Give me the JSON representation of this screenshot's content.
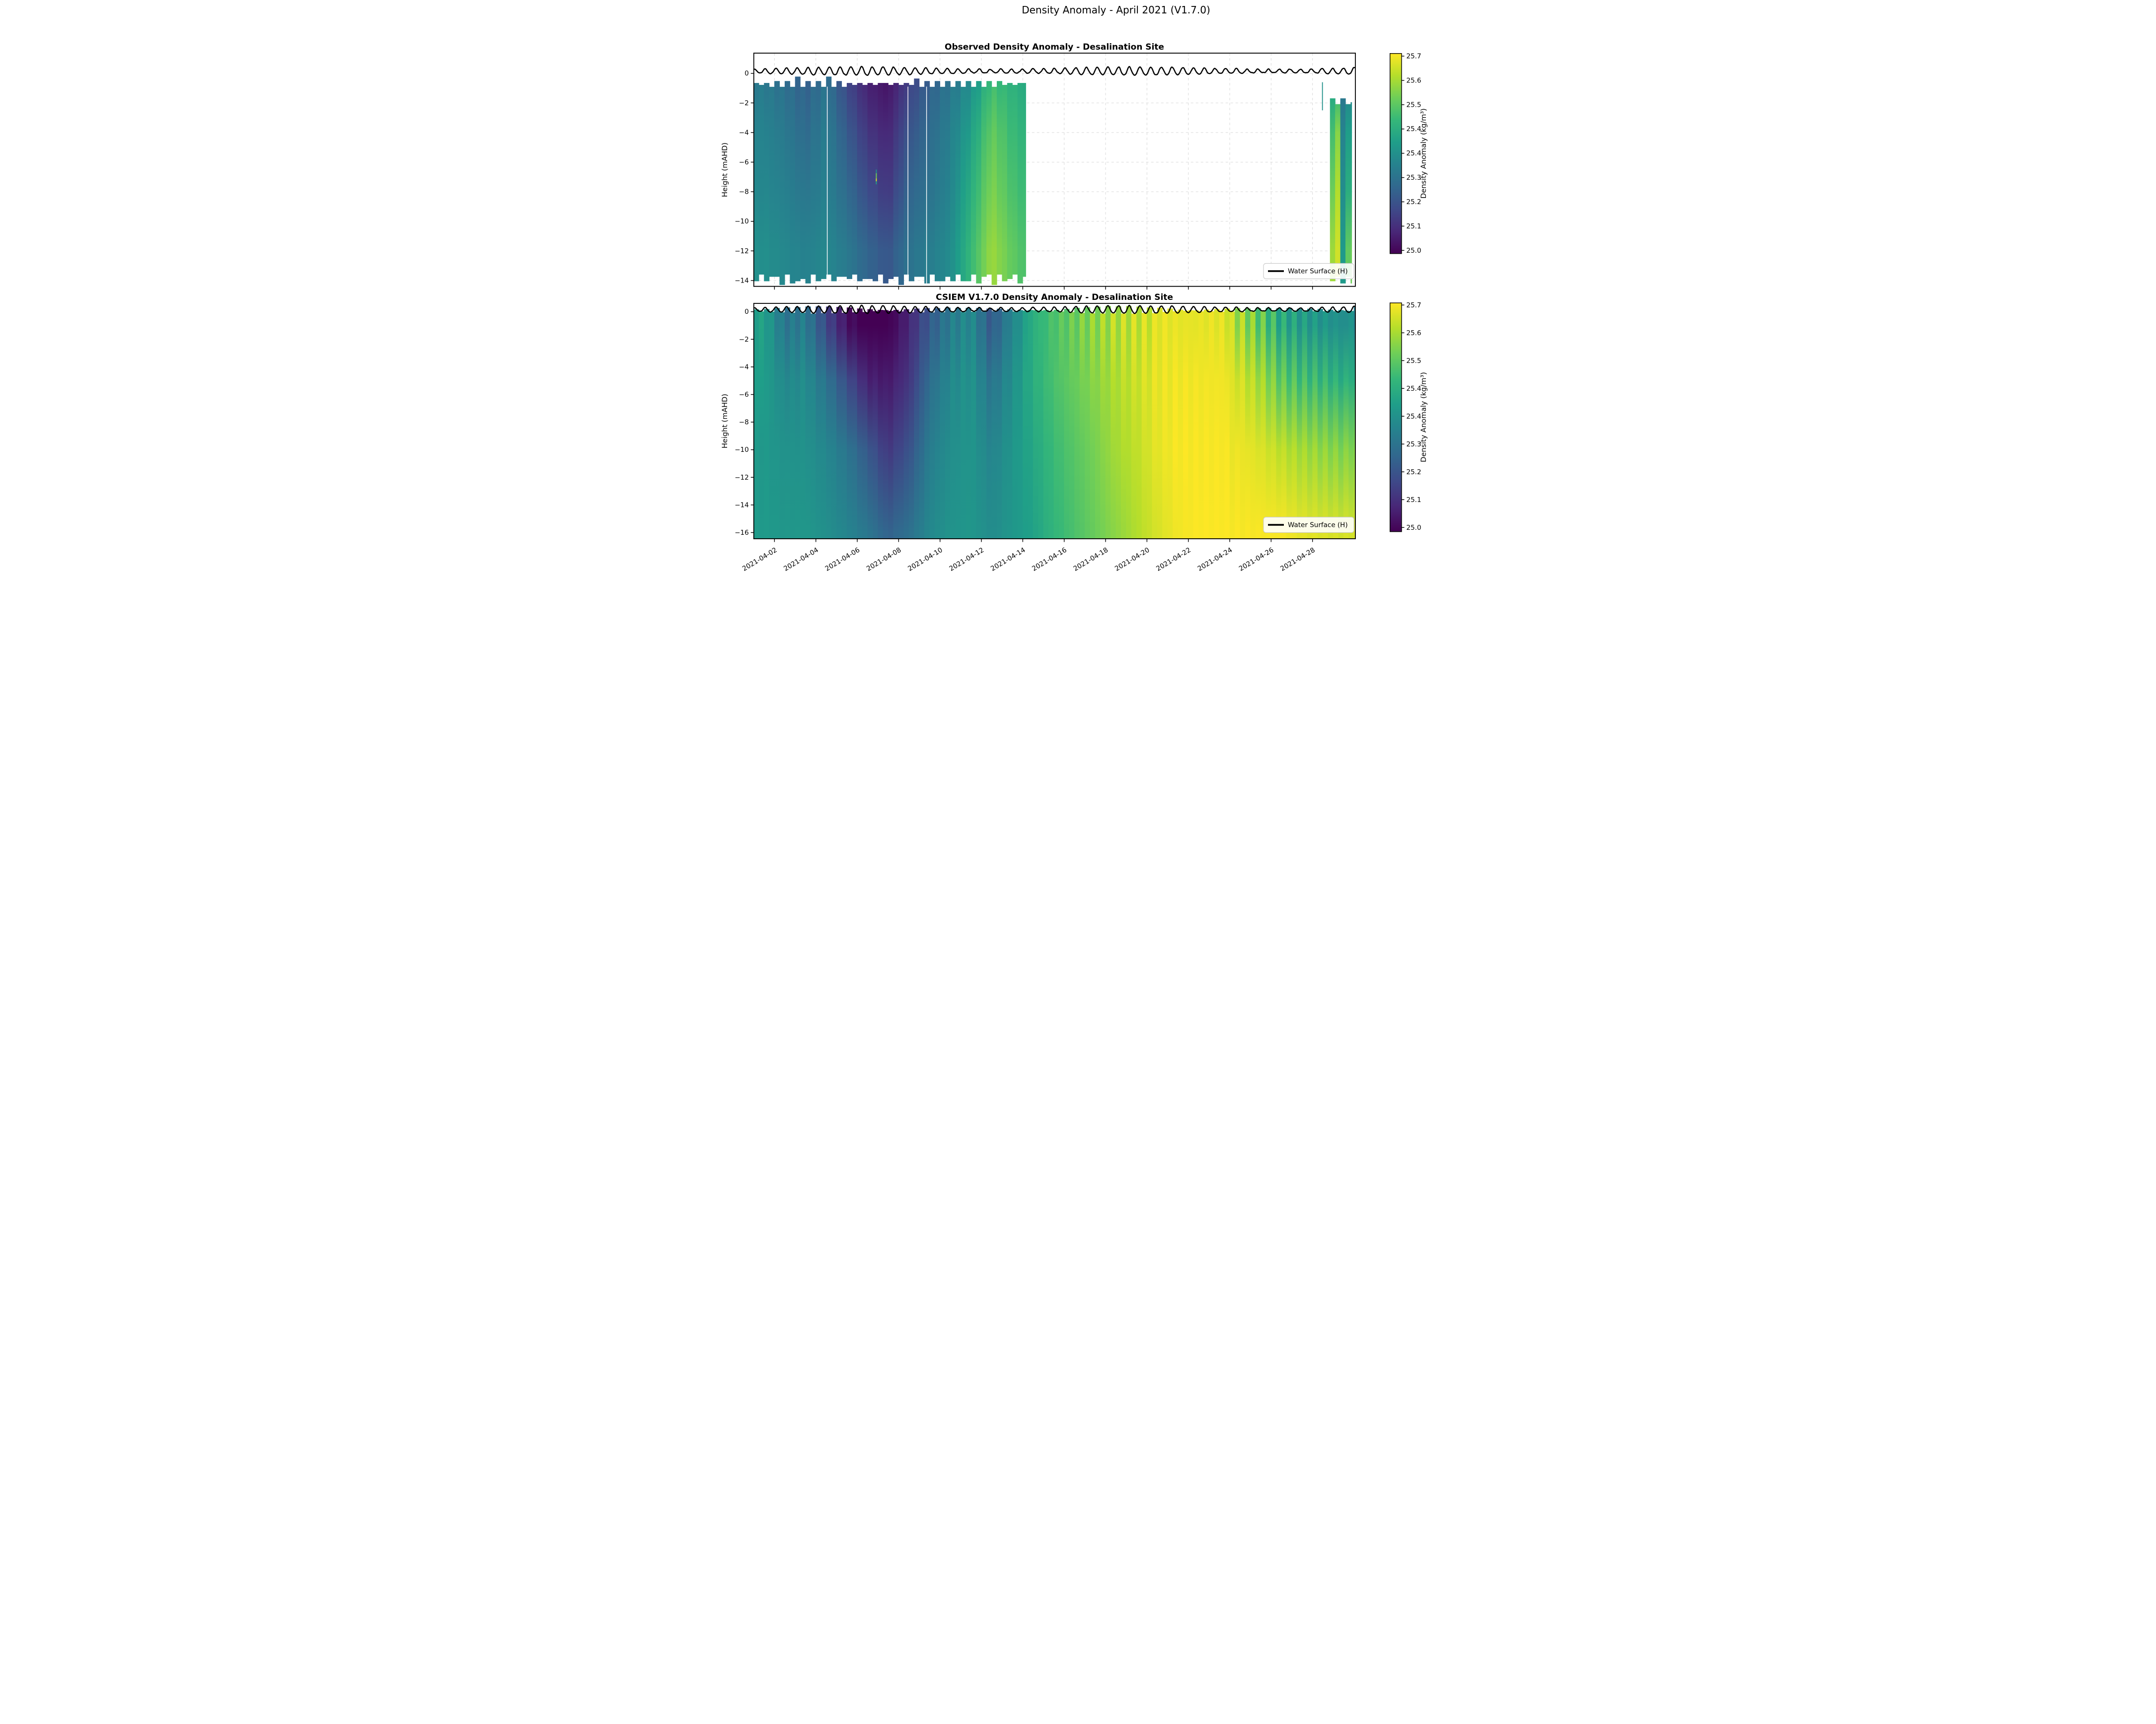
{
  "figure": {
    "title": "Density Anomaly - April 2021 (V1.7.0)",
    "background": "#ffffff"
  },
  "colormap": {
    "name": "viridis",
    "vmin": 25.0,
    "vmax": 25.7,
    "stops": [
      "#440154",
      "#482878",
      "#3e4a89",
      "#31688e",
      "#26828e",
      "#1f9e89",
      "#35b779",
      "#6ece58",
      "#b5de2b",
      "#fde725"
    ]
  },
  "x_axis": {
    "range_days": [
      "2021-04-01",
      "2021-04-30"
    ],
    "tick_labels": [
      "2021-04-02",
      "2021-04-04",
      "2021-04-06",
      "2021-04-08",
      "2021-04-10",
      "2021-04-12",
      "2021-04-14",
      "2021-04-16",
      "2021-04-18",
      "2021-04-20",
      "2021-04-22",
      "2021-04-24",
      "2021-04-26",
      "2021-04-28"
    ],
    "tick_rotation_deg": 30
  },
  "chart_data": [
    {
      "type": "heatmap",
      "title": "Observed Density Anomaly - Desalination Site",
      "ylabel": "Height (mAHD)",
      "ytick_labels": [
        "0",
        "−2",
        "−4",
        "−6",
        "−8",
        "−10",
        "−12",
        "−14"
      ],
      "ylim": [
        1.35,
        -14.4
      ],
      "grid": true,
      "legend_label": "Water Surface (H)",
      "colorbar": {
        "label": "Density Anomaly (kg/m³)",
        "tick_labels": [
          "25.7",
          "25.6",
          "25.5",
          "25.4",
          "25.4",
          "25.3",
          "25.2",
          "25.1",
          "25.0"
        ]
      },
      "depths_m": [
        -1,
        -4,
        -8,
        -12
      ],
      "data_top_m": -0.72,
      "data_bottom_m": -13.9,
      "gap": [
        "2021-04-14T03:00",
        "2021-04-28T20:00"
      ],
      "water_surface": {
        "mean_m": 0.14,
        "tidal_amplitude_m": 0.28,
        "period_days": 0.5175
      },
      "segments": [
        {
          "day_range": [
            0,
            13.15
          ],
          "top_m": -0.72,
          "columns": [
            {
              "date": "2021-04-01",
              "day": 0.5,
              "values": [
                25.3,
                25.32,
                25.33,
                25.35
              ]
            },
            {
              "date": "2021-04-02",
              "day": 1.5,
              "values": [
                25.27,
                25.29,
                25.31,
                25.33
              ]
            },
            {
              "date": "2021-04-03",
              "day": 2.5,
              "values": [
                25.23,
                25.25,
                25.28,
                25.31
              ]
            },
            {
              "date": "2021-04-04",
              "day": 3.5,
              "values": [
                25.28,
                25.3,
                25.31,
                25.33
              ]
            },
            {
              "date": "2021-04-05",
              "day": 4.5,
              "values": [
                25.17,
                25.21,
                25.25,
                25.29
              ]
            },
            {
              "date": "2021-04-06",
              "day": 5.5,
              "values": [
                25.08,
                25.12,
                25.17,
                25.23
              ]
            },
            {
              "date": "2021-04-07",
              "day": 6.5,
              "values": [
                25.05,
                25.08,
                25.12,
                25.19
              ]
            },
            {
              "date": "2021-04-08",
              "day": 7.5,
              "values": [
                25.15,
                25.19,
                25.23,
                25.27
              ]
            },
            {
              "date": "2021-04-09",
              "day": 8.5,
              "values": [
                25.23,
                25.25,
                25.27,
                25.3
              ]
            },
            {
              "date": "2021-04-10",
              "day": 9.5,
              "values": [
                25.29,
                25.31,
                25.32,
                25.34
              ]
            },
            {
              "date": "2021-04-11",
              "day": 10.5,
              "values": [
                25.36,
                25.4,
                25.44,
                25.47
              ]
            },
            {
              "date": "2021-04-12",
              "day": 11.5,
              "values": [
                25.5,
                25.54,
                25.57,
                25.6
              ]
            },
            {
              "date": "2021-04-13",
              "day": 12.5,
              "values": [
                25.46,
                25.48,
                25.5,
                25.53
              ]
            },
            {
              "date": "2021-04-14",
              "day": 13.1,
              "values": [
                25.44,
                25.46,
                25.48,
                25.5
              ]
            }
          ]
        },
        {
          "day_range": [
            27.85,
            28.9
          ],
          "top_m": -1.9,
          "columns": [
            {
              "date": "2021-04-28",
              "day": 28.0,
              "values": [
                25.45,
                25.5,
                25.55,
                25.6
              ]
            },
            {
              "date": "2021-04-29",
              "day": 28.25,
              "values": [
                25.5,
                25.58,
                25.63,
                25.66
              ]
            },
            {
              "date": "2021-04-29",
              "day": 28.5,
              "values": [
                25.28,
                25.3,
                25.32,
                25.35
              ]
            },
            {
              "date": "2021-04-29",
              "day": 28.75,
              "values": [
                25.35,
                25.4,
                25.45,
                25.55
              ]
            }
          ]
        }
      ],
      "features": {
        "spike": {
          "day": 27.48,
          "top_m": -0.6,
          "bottom_m": -2.5,
          "value": 25.35
        },
        "anomaly_dash": {
          "day": 5.92,
          "top_m": -6.5,
          "bottom_m": -7.5,
          "peak_value": 25.68
        },
        "white_slits_days": [
          3.55,
          7.45,
          8.35
        ]
      }
    },
    {
      "type": "heatmap",
      "title": "CSIEM V1.7.0 Density Anomaly - Desalination Site",
      "ylabel": "Height (mAHD)",
      "ytick_labels": [
        "0",
        "−2",
        "−4",
        "−6",
        "−8",
        "−10",
        "−12",
        "−14",
        "−16"
      ],
      "ylim": [
        0.6,
        -16.45
      ],
      "grid": false,
      "legend_label": "Water Surface (H)",
      "colorbar": {
        "label": "Density Anomaly (kg/m³)",
        "tick_labels": [
          "25.7",
          "25.6",
          "25.5",
          "25.4",
          "25.4",
          "25.3",
          "25.2",
          "25.1",
          "25.0"
        ]
      },
      "depths_m": [
        -1,
        -5,
        -10,
        -16
      ],
      "data_top_m": 0.0,
      "data_bottom_m": -16.45,
      "water_surface": {
        "mean_m": 0.14,
        "tidal_amplitude_m": 0.28,
        "period_days": 0.5175
      },
      "tidal_modulation": {
        "shallow_amp": 0.05,
        "mid_month_amp": 0.08,
        "late_month_amp": 0.11,
        "late_month_start_day": 23
      },
      "segments": [
        {
          "day_range": [
            0,
            29.07
          ],
          "columns": [
            {
              "date": "2021-04-01",
              "day": 0.5,
              "values": [
                25.42,
                25.4,
                25.38,
                25.38
              ]
            },
            {
              "date": "2021-04-02",
              "day": 1.5,
              "values": [
                25.3,
                25.34,
                25.36,
                25.37
              ]
            },
            {
              "date": "2021-04-03",
              "day": 2.5,
              "values": [
                25.32,
                25.35,
                25.36,
                25.37
              ]
            },
            {
              "date": "2021-04-04",
              "day": 3.5,
              "values": [
                25.18,
                25.28,
                25.33,
                25.35
              ]
            },
            {
              "date": "2021-04-05",
              "day": 4.5,
              "values": [
                25.06,
                25.18,
                25.28,
                25.32
              ]
            },
            {
              "date": "2021-04-06",
              "day": 5.5,
              "values": [
                25.0,
                25.08,
                25.2,
                25.28
              ]
            },
            {
              "date": "2021-04-07",
              "day": 6.5,
              "values": [
                25.02,
                25.06,
                25.12,
                25.22
              ]
            },
            {
              "date": "2021-04-08",
              "day": 7.5,
              "values": [
                25.1,
                25.12,
                25.18,
                25.26
              ]
            },
            {
              "date": "2021-04-09",
              "day": 8.5,
              "values": [
                25.22,
                25.26,
                25.3,
                25.33
              ]
            },
            {
              "date": "2021-04-10",
              "day": 9.5,
              "values": [
                25.32,
                25.34,
                25.35,
                25.36
              ]
            },
            {
              "date": "2021-04-11",
              "day": 10.5,
              "values": [
                25.36,
                25.37,
                25.37,
                25.37
              ]
            },
            {
              "date": "2021-04-12",
              "day": 11.5,
              "values": [
                25.22,
                25.28,
                25.32,
                25.34
              ]
            },
            {
              "date": "2021-04-13",
              "day": 12.5,
              "values": [
                25.35,
                25.36,
                25.37,
                25.37
              ]
            },
            {
              "date": "2021-04-14",
              "day": 13.5,
              "values": [
                25.48,
                25.45,
                25.42,
                25.4
              ]
            },
            {
              "date": "2021-04-15",
              "day": 14.5,
              "values": [
                25.54,
                25.51,
                25.48,
                25.46
              ]
            },
            {
              "date": "2021-04-16",
              "day": 15.5,
              "values": [
                25.58,
                25.55,
                25.52,
                25.5
              ]
            },
            {
              "date": "2021-04-17",
              "day": 16.5,
              "values": [
                25.62,
                25.59,
                25.56,
                25.54
              ]
            },
            {
              "date": "2021-04-18",
              "day": 17.5,
              "values": [
                25.66,
                25.63,
                25.61,
                25.58
              ]
            },
            {
              "date": "2021-04-19",
              "day": 18.5,
              "values": [
                25.68,
                25.66,
                25.64,
                25.62
              ]
            },
            {
              "date": "2021-04-20",
              "day": 19.5,
              "values": [
                25.7,
                25.69,
                25.68,
                25.66
              ]
            },
            {
              "date": "2021-04-21",
              "day": 20.5,
              "values": [
                25.7,
                25.7,
                25.7,
                25.69
              ]
            },
            {
              "date": "2021-04-22",
              "day": 21.5,
              "values": [
                25.7,
                25.7,
                25.7,
                25.7
              ]
            },
            {
              "date": "2021-04-23",
              "day": 22.5,
              "values": [
                25.7,
                25.7,
                25.7,
                25.7
              ]
            },
            {
              "date": "2021-04-24",
              "day": 23.5,
              "values": [
                25.66,
                25.69,
                25.7,
                25.7
              ]
            },
            {
              "date": "2021-04-25",
              "day": 24.5,
              "values": [
                25.58,
                25.64,
                25.68,
                25.7
              ]
            },
            {
              "date": "2021-04-26",
              "day": 25.5,
              "values": [
                25.48,
                25.56,
                25.65,
                25.7
              ]
            },
            {
              "date": "2021-04-27",
              "day": 26.5,
              "values": [
                25.44,
                25.52,
                25.62,
                25.68
              ]
            },
            {
              "date": "2021-04-28",
              "day": 27.5,
              "values": [
                25.42,
                25.5,
                25.6,
                25.67
              ]
            },
            {
              "date": "2021-04-29",
              "day": 28.5,
              "values": [
                25.4,
                25.47,
                25.58,
                25.66
              ]
            },
            {
              "date": "2021-04-30",
              "day": 29.5,
              "values": [
                25.42,
                25.5,
                25.6,
                25.67
              ]
            }
          ]
        }
      ]
    }
  ]
}
